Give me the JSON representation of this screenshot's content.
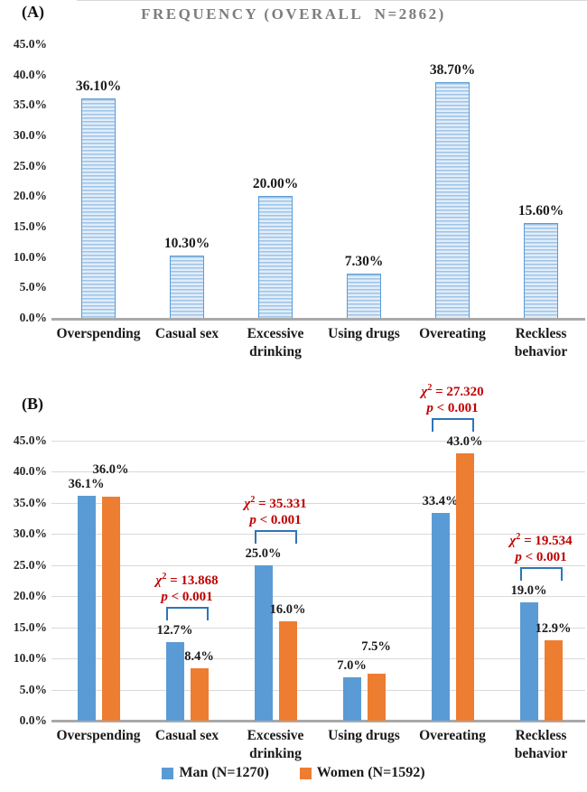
{
  "chart_data": [
    {
      "id": "A",
      "type": "bar",
      "panel_label": "(A)",
      "title": "FREQUENCY (OVERALL  N=2862)",
      "categories": [
        "Overspending",
        "Casual sex",
        "Excessive\ndrinking",
        "Using drugs",
        "Overeating",
        "Reckless\nbehavior"
      ],
      "values": [
        36.1,
        10.3,
        20.0,
        7.3,
        38.7,
        15.6
      ],
      "value_labels": [
        "36.10%",
        "10.30%",
        "20.00%",
        "7.30%",
        "38.70%",
        "15.60%"
      ],
      "ytick_labels": [
        "45.0%",
        "40.0%",
        "35.0%",
        "30.0%",
        "25.0%",
        "20.0%",
        "15.0%",
        "10.0%",
        "5.0%",
        "0.0%"
      ],
      "ylim": [
        0,
        45
      ],
      "grid": false,
      "bar_style": "striped-horizontal",
      "bar_border_color": "#5b9bd5",
      "xlabel": "",
      "ylabel": ""
    },
    {
      "id": "B",
      "type": "bar",
      "panel_label": "(B)",
      "title": "",
      "categories": [
        "Overspending",
        "Casual sex",
        "Excessive\ndrinking",
        "Using drugs",
        "Overeating",
        "Reckless\nbehavior"
      ],
      "series": [
        {
          "name": "Man (N=1270)",
          "color": "#5b9bd5",
          "values": [
            36.1,
            12.7,
            25.0,
            7.0,
            33.4,
            19.0
          ],
          "value_labels": [
            "36.1%",
            "12.7%",
            "25.0%",
            "7.0%",
            "33.4%",
            "19.0%"
          ]
        },
        {
          "name": "Women (N=1592)",
          "color": "#ed7d31",
          "values": [
            36.0,
            8.4,
            16.0,
            7.5,
            43.0,
            12.9
          ],
          "value_labels": [
            "36.0%",
            "8.4%",
            "16.0%",
            "7.5%",
            "43.0%",
            "12.9%"
          ]
        }
      ],
      "annotations": [
        {
          "category": "Casual sex",
          "category_index": 1,
          "chi_sym": "χ",
          "chi_sup": "2",
          "chi_rest": " = 13.868",
          "p_sym": "p",
          "p_rest": " < 0.001"
        },
        {
          "category": "Excessive drinking",
          "category_index": 2,
          "chi_sym": "χ",
          "chi_sup": "2",
          "chi_rest": " = 35.331",
          "p_sym": "p",
          "p_rest": " < 0.001"
        },
        {
          "category": "Overeating",
          "category_index": 4,
          "chi_sym": "χ",
          "chi_sup": "2",
          "chi_rest": " = 27.320",
          "p_sym": "p",
          "p_rest": " < 0.001"
        },
        {
          "category": "Reckless behavior",
          "category_index": 5,
          "chi_sym": "χ",
          "chi_sup": "2",
          "chi_rest": " = 19.534",
          "p_sym": "p",
          "p_rest": " < 0.001"
        }
      ],
      "annotation_color": "#c00000",
      "bracket_color": "#2e75b6",
      "ytick_labels": [
        "45.0%",
        "40.0%",
        "35.0%",
        "30.0%",
        "25.0%",
        "20.0%",
        "15.0%",
        "10.0%",
        "5.0%",
        "0.0%"
      ],
      "ylim": [
        0,
        45
      ],
      "grid": true,
      "gridline_color": "#d9d9d9",
      "legend_position": "bottom",
      "xlabel": "",
      "ylabel": ""
    }
  ]
}
